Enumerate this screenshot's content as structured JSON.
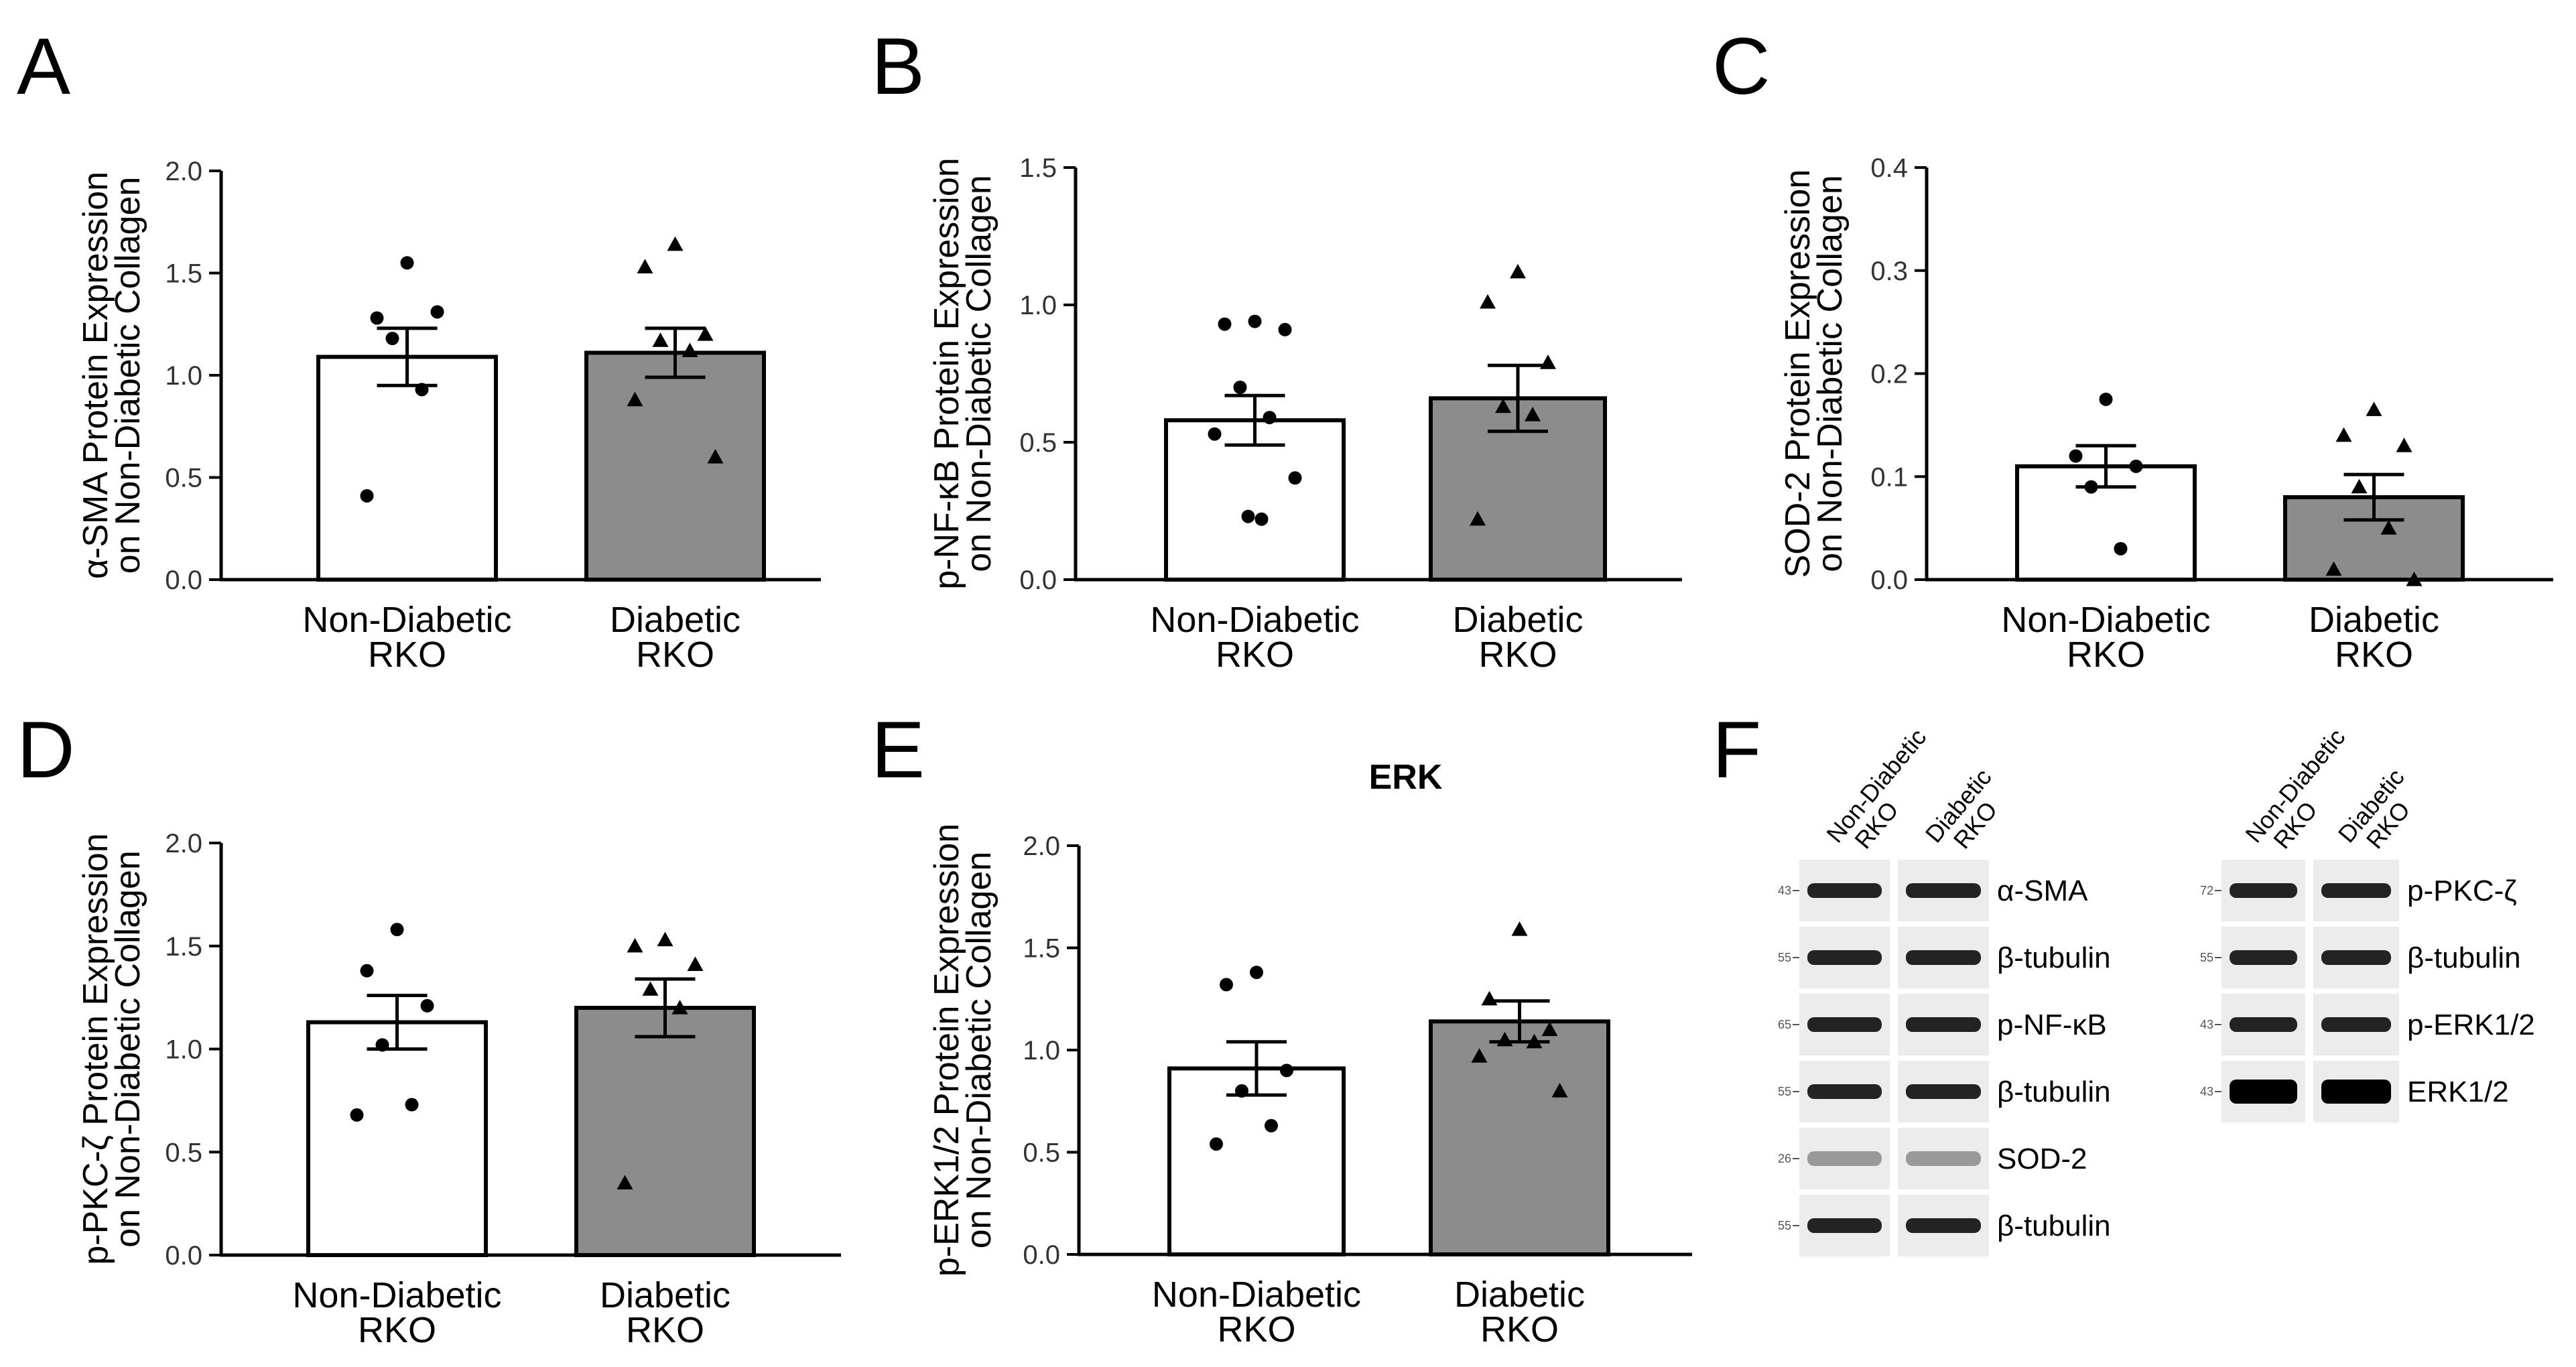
{
  "colors": {
    "bar_non_diabetic": "#ffffff",
    "bar_diabetic": "#8c8c8c",
    "stroke": "#000000"
  },
  "chart_data": [
    {
      "panel": "A",
      "type": "bar",
      "title": "",
      "ylabel_line1": "α-SMA Protein Expression",
      "ylabel_line2": "on Non-Diabetic Collagen",
      "ylim": [
        0,
        2.0
      ],
      "yticks": [
        "0.0",
        "0.5",
        "1.0",
        "1.5",
        "2.0"
      ],
      "categories": [
        {
          "line1": "Non-Diabetic",
          "line2": "RKO"
        },
        {
          "line1": "Diabetic",
          "line2": "RKO"
        }
      ],
      "values": [
        1.09,
        1.11
      ],
      "sem": [
        0.14,
        0.12
      ],
      "points": [
        [
          1.55,
          1.28,
          1.31,
          1.18,
          0.93,
          0.41
        ],
        [
          1.64,
          1.53,
          1.2,
          1.17,
          1.12,
          0.88,
          0.6
        ]
      ],
      "markers": [
        "circle",
        "triangle"
      ]
    },
    {
      "panel": "B",
      "type": "bar",
      "title": "",
      "ylabel_line1": "p-NF-κB Protein Expression",
      "ylabel_line2": "on Non-Diabetic Collagen",
      "ylim": [
        0,
        1.5
      ],
      "yticks": [
        "0.0",
        "0.5",
        "1.0",
        "1.5"
      ],
      "categories": [
        {
          "line1": "Non-Diabetic",
          "line2": "RKO"
        },
        {
          "line1": "Diabetic",
          "line2": "RKO"
        }
      ],
      "values": [
        0.58,
        0.66
      ],
      "sem": [
        0.09,
        0.12
      ],
      "points": [
        [
          0.94,
          0.93,
          0.91,
          0.7,
          0.59,
          0.53,
          0.37,
          0.23,
          0.22
        ],
        [
          1.12,
          1.01,
          0.79,
          0.63,
          0.6,
          0.22
        ]
      ],
      "markers": [
        "circle",
        "triangle"
      ]
    },
    {
      "panel": "C",
      "type": "bar",
      "title": "",
      "ylabel_line1": "SOD-2 Protein Expression",
      "ylabel_line2": "on Non-Diabetic Collagen",
      "ylim": [
        0,
        0.4
      ],
      "yticks": [
        "0.0",
        "0.1",
        "0.2",
        "0.3",
        "0.4"
      ],
      "categories": [
        {
          "line1": "Non-Diabetic",
          "line2": "RKO"
        },
        {
          "line1": "Diabetic",
          "line2": "RKO"
        }
      ],
      "values": [
        0.11,
        0.08
      ],
      "sem": [
        0.02,
        0.022
      ],
      "points": [
        [
          0.175,
          0.12,
          0.11,
          0.09,
          0.03
        ],
        [
          0.165,
          0.14,
          0.13,
          0.09,
          0.05,
          0.01,
          0.0
        ]
      ],
      "markers": [
        "circle",
        "triangle"
      ]
    },
    {
      "panel": "D",
      "type": "bar",
      "title": "",
      "ylabel_line1": "p-PKC-ζ Protein Expression",
      "ylabel_line2": "on Non-Diabetic Collagen",
      "ylim": [
        0,
        2.0
      ],
      "yticks": [
        "0.0",
        "0.5",
        "1.0",
        "1.5",
        "2.0"
      ],
      "categories": [
        {
          "line1": "Non-Diabetic",
          "line2": "RKO"
        },
        {
          "line1": "Diabetic",
          "line2": "RKO"
        }
      ],
      "values": [
        1.13,
        1.2
      ],
      "sem": [
        0.13,
        0.14
      ],
      "points": [
        [
          1.58,
          1.38,
          1.21,
          1.02,
          0.73,
          0.68
        ],
        [
          1.53,
          1.5,
          1.41,
          1.29,
          1.2,
          0.35
        ]
      ],
      "markers": [
        "circle",
        "triangle"
      ]
    },
    {
      "panel": "E",
      "type": "bar",
      "title": "ERK",
      "ylabel_line1": "p-ERK1/2 Protein Expression",
      "ylabel_line2": "on Non-Diabetic Collagen",
      "ylim": [
        0,
        2.0
      ],
      "yticks": [
        "0.0",
        "0.5",
        "1.0",
        "1.5",
        "2.0"
      ],
      "categories": [
        {
          "line1": "Non-Diabetic",
          "line2": "RKO"
        },
        {
          "line1": "Diabetic",
          "line2": "RKO"
        }
      ],
      "values": [
        0.91,
        1.14
      ],
      "sem": [
        0.13,
        0.1
      ],
      "points": [
        [
          1.38,
          1.32,
          0.9,
          0.8,
          0.63,
          0.54
        ],
        [
          1.59,
          1.25,
          1.1,
          1.05,
          1.04,
          0.97,
          0.8
        ]
      ],
      "markers": [
        "circle",
        "triangle"
      ]
    }
  ],
  "panel_f": {
    "letter": "F",
    "left_columns": [
      "Non-Diabetic RKO",
      "Diabetic RKO"
    ],
    "right_columns": [
      "Non-Diabetic RKO",
      "Diabetic RKO"
    ],
    "left_rows": [
      {
        "label": "α-SMA",
        "mw": "43"
      },
      {
        "label": "β-tubulin",
        "mw": "55"
      },
      {
        "label": "p-NF-κB",
        "mw": "65"
      },
      {
        "label": "β-tubulin",
        "mw": "55"
      },
      {
        "label": "SOD-2",
        "mw": "26"
      },
      {
        "label": "β-tubulin",
        "mw": "55"
      }
    ],
    "right_rows": [
      {
        "label": "p-PKC-ζ",
        "mw": "72"
      },
      {
        "label": "β-tubulin",
        "mw": "55"
      },
      {
        "label": "p-ERK1/2",
        "mw": "43"
      },
      {
        "label": "ERK1/2",
        "mw": "43"
      }
    ]
  }
}
